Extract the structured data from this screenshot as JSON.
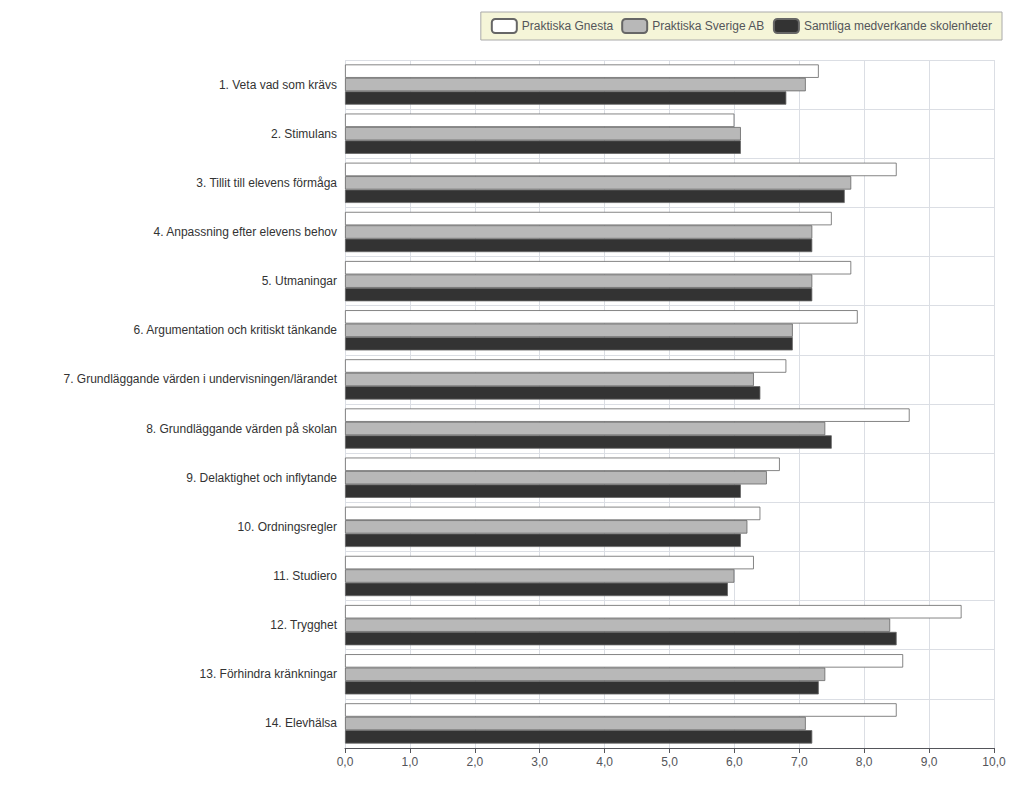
{
  "chart_data": {
    "type": "bar",
    "orientation": "horizontal",
    "categories": [
      "1. Veta vad som krävs",
      "2. Stimulans",
      "3. Tillit till elevens förmåga",
      "4. Anpassning efter elevens behov",
      "5. Utmaningar",
      "6. Argumentation och kritiskt tänkande",
      "7. Grundläggande värden i undervisningen/lärandet",
      "8. Grundläggande värden på skolan",
      "9. Delaktighet och inflytande",
      "10. Ordningsregler",
      "11. Studiero",
      "12. Trygghet",
      "13. Förhindra kränkningar",
      "14. Elevhälsa"
    ],
    "series": [
      {
        "name": "Praktiska Gnesta",
        "color": "#ffffff",
        "values": [
          7.3,
          6.0,
          8.5,
          7.5,
          7.8,
          7.9,
          6.8,
          8.7,
          6.7,
          6.4,
          6.3,
          9.5,
          8.6,
          8.5
        ]
      },
      {
        "name": "Praktiska Sverige AB",
        "color": "#b8b8b8",
        "values": [
          7.1,
          6.1,
          7.8,
          7.2,
          7.2,
          6.9,
          6.3,
          7.4,
          6.5,
          6.2,
          6.0,
          8.4,
          7.4,
          7.1
        ]
      },
      {
        "name": "Samtliga medverkande skolenheter",
        "color": "#333333",
        "values": [
          6.8,
          6.1,
          7.7,
          7.2,
          7.2,
          6.9,
          6.4,
          7.5,
          6.1,
          6.1,
          5.9,
          8.5,
          7.3,
          7.2
        ]
      }
    ],
    "xlim": [
      0,
      10
    ],
    "xticks": [
      {
        "value": 0.0,
        "label": "0,0"
      },
      {
        "value": 1.0,
        "label": "1,0"
      },
      {
        "value": 2.0,
        "label": "2,0"
      },
      {
        "value": 3.0,
        "label": "3,0"
      },
      {
        "value": 4.0,
        "label": "4,0"
      },
      {
        "value": 5.0,
        "label": "5,0"
      },
      {
        "value": 6.0,
        "label": "6,0"
      },
      {
        "value": 7.0,
        "label": "7,0"
      },
      {
        "value": 8.0,
        "label": "8,0"
      },
      {
        "value": 9.0,
        "label": "9,0"
      },
      {
        "value": 10.0,
        "label": "10,0"
      }
    ],
    "grid": true,
    "legend": "upper right"
  }
}
